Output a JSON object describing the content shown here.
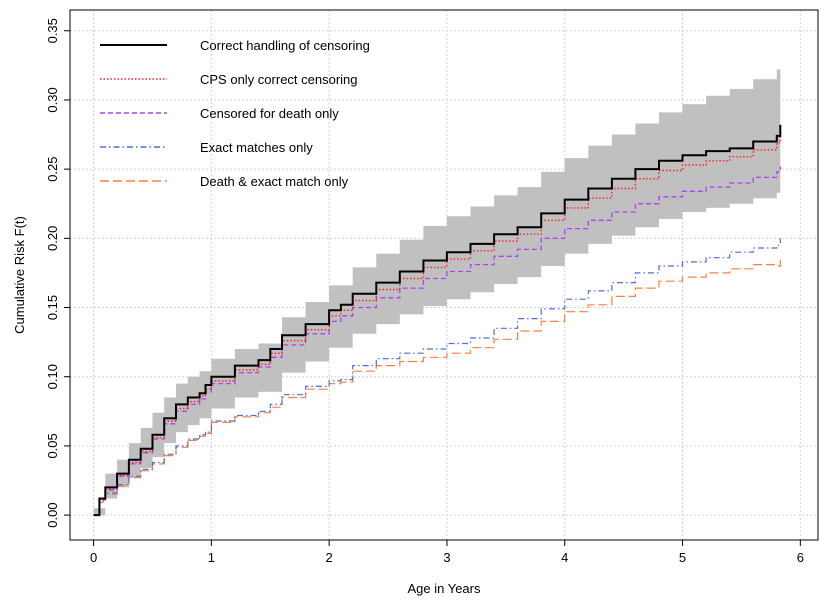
{
  "chart_data": {
    "type": "line",
    "title": "",
    "xlabel": "Age in Years",
    "ylabel": "Cumulative Risk F(t)",
    "xlim": [
      -0.2,
      6.15
    ],
    "ylim": [
      -0.018,
      0.365
    ],
    "x_ticks": [
      "0",
      "1",
      "2",
      "3",
      "4",
      "5",
      "6"
    ],
    "y_ticks": [
      "0.00",
      "0.05",
      "0.10",
      "0.15",
      "0.20",
      "0.25",
      "0.30",
      "0.35"
    ],
    "grid": true,
    "legend_position": "top-left",
    "series": [
      {
        "name": "Correct handling of censoring",
        "color": "#000000",
        "style": "solid",
        "x": [
          0,
          0.05,
          0.1,
          0.2,
          0.3,
          0.4,
          0.5,
          0.6,
          0.7,
          0.8,
          0.9,
          0.95,
          1.0,
          1.2,
          1.4,
          1.5,
          1.6,
          1.8,
          2.0,
          2.1,
          2.2,
          2.4,
          2.6,
          2.8,
          3.0,
          3.2,
          3.4,
          3.6,
          3.8,
          4.0,
          4.2,
          4.4,
          4.6,
          4.8,
          5.0,
          5.2,
          5.4,
          5.6,
          5.8,
          5.83
        ],
        "y": [
          0,
          0.012,
          0.02,
          0.03,
          0.04,
          0.048,
          0.058,
          0.07,
          0.08,
          0.085,
          0.088,
          0.094,
          0.1,
          0.108,
          0.112,
          0.12,
          0.13,
          0.138,
          0.148,
          0.152,
          0.16,
          0.168,
          0.176,
          0.184,
          0.19,
          0.196,
          0.203,
          0.208,
          0.218,
          0.228,
          0.236,
          0.243,
          0.25,
          0.256,
          0.26,
          0.263,
          0.265,
          0.27,
          0.274,
          0.282
        ]
      },
      {
        "name": "CPS only correct censoring",
        "color": "#ff2020",
        "style": "dotted",
        "x": [
          0,
          0.05,
          0.1,
          0.2,
          0.3,
          0.4,
          0.5,
          0.6,
          0.7,
          0.8,
          0.9,
          0.95,
          1.0,
          1.2,
          1.4,
          1.5,
          1.6,
          1.8,
          2.0,
          2.1,
          2.2,
          2.4,
          2.6,
          2.8,
          3.0,
          3.2,
          3.4,
          3.6,
          3.8,
          4.0,
          4.2,
          4.4,
          4.6,
          4.8,
          5.0,
          5.2,
          5.4,
          5.6,
          5.8,
          5.83
        ],
        "y": [
          0,
          0.011,
          0.019,
          0.029,
          0.038,
          0.046,
          0.056,
          0.068,
          0.077,
          0.082,
          0.086,
          0.091,
          0.097,
          0.105,
          0.109,
          0.117,
          0.126,
          0.134,
          0.144,
          0.148,
          0.155,
          0.163,
          0.171,
          0.179,
          0.185,
          0.191,
          0.198,
          0.203,
          0.213,
          0.222,
          0.229,
          0.236,
          0.243,
          0.249,
          0.253,
          0.256,
          0.259,
          0.264,
          0.269,
          0.276
        ]
      },
      {
        "name": "Censored for death only",
        "color": "#b040f0",
        "style": "dashed",
        "x": [
          0,
          0.05,
          0.1,
          0.2,
          0.3,
          0.4,
          0.5,
          0.6,
          0.7,
          0.8,
          0.9,
          0.95,
          1.0,
          1.2,
          1.4,
          1.5,
          1.6,
          1.8,
          2.0,
          2.1,
          2.2,
          2.4,
          2.6,
          2.8,
          3.0,
          3.2,
          3.4,
          3.6,
          3.8,
          4.0,
          4.2,
          4.4,
          4.6,
          4.8,
          5.0,
          5.2,
          5.4,
          5.6,
          5.8,
          5.83
        ],
        "y": [
          0,
          0.011,
          0.018,
          0.028,
          0.037,
          0.045,
          0.055,
          0.066,
          0.075,
          0.08,
          0.084,
          0.089,
          0.095,
          0.103,
          0.107,
          0.114,
          0.123,
          0.131,
          0.14,
          0.144,
          0.15,
          0.157,
          0.164,
          0.171,
          0.176,
          0.181,
          0.187,
          0.192,
          0.2,
          0.207,
          0.213,
          0.219,
          0.225,
          0.23,
          0.234,
          0.237,
          0.24,
          0.244,
          0.248,
          0.252
        ]
      },
      {
        "name": "Exact matches only",
        "color": "#4a6fe0",
        "style": "dashdot",
        "x": [
          0,
          0.05,
          0.1,
          0.2,
          0.3,
          0.4,
          0.5,
          0.6,
          0.7,
          0.8,
          0.9,
          0.95,
          1.0,
          1.2,
          1.4,
          1.5,
          1.6,
          1.8,
          2.0,
          2.1,
          2.2,
          2.4,
          2.6,
          2.8,
          3.0,
          3.2,
          3.4,
          3.6,
          3.8,
          4.0,
          4.2,
          4.4,
          4.6,
          4.8,
          5.0,
          5.2,
          5.4,
          5.6,
          5.8,
          5.83
        ],
        "y": [
          0,
          0.01,
          0.016,
          0.022,
          0.028,
          0.033,
          0.038,
          0.044,
          0.05,
          0.055,
          0.058,
          0.06,
          0.068,
          0.072,
          0.075,
          0.08,
          0.087,
          0.093,
          0.097,
          0.098,
          0.108,
          0.113,
          0.117,
          0.12,
          0.124,
          0.128,
          0.135,
          0.142,
          0.149,
          0.156,
          0.162,
          0.168,
          0.175,
          0.18,
          0.183,
          0.186,
          0.19,
          0.193,
          0.195,
          0.2
        ]
      },
      {
        "name": "Death & exact match only",
        "color": "#ff7f40",
        "style": "longdash",
        "x": [
          0,
          0.05,
          0.1,
          0.2,
          0.3,
          0.4,
          0.5,
          0.6,
          0.7,
          0.8,
          0.9,
          0.95,
          1.0,
          1.2,
          1.4,
          1.5,
          1.6,
          1.8,
          2.0,
          2.1,
          2.2,
          2.4,
          2.6,
          2.8,
          3.0,
          3.2,
          3.4,
          3.6,
          3.8,
          4.0,
          4.2,
          4.4,
          4.6,
          4.8,
          5.0,
          5.2,
          5.4,
          5.6,
          5.8,
          5.83
        ],
        "y": [
          0,
          0.009,
          0.015,
          0.021,
          0.027,
          0.032,
          0.037,
          0.043,
          0.049,
          0.054,
          0.057,
          0.059,
          0.067,
          0.071,
          0.074,
          0.078,
          0.085,
          0.091,
          0.095,
          0.096,
          0.104,
          0.108,
          0.111,
          0.114,
          0.117,
          0.121,
          0.127,
          0.133,
          0.14,
          0.147,
          0.152,
          0.158,
          0.164,
          0.169,
          0.172,
          0.175,
          0.178,
          0.181,
          0.18,
          0.185
        ]
      }
    ],
    "confidence_band": {
      "series": "Correct handling of censoring",
      "color": "#c0c0c0",
      "x": [
        0,
        0.1,
        0.2,
        0.3,
        0.4,
        0.5,
        0.6,
        0.7,
        0.8,
        0.9,
        1.0,
        1.2,
        1.4,
        1.6,
        1.8,
        2.0,
        2.2,
        2.4,
        2.6,
        2.8,
        3.0,
        3.2,
        3.4,
        3.6,
        3.8,
        4.0,
        4.2,
        4.4,
        4.6,
        4.8,
        5.0,
        5.2,
        5.4,
        5.6,
        5.8,
        5.83
      ],
      "lower": [
        0,
        0.012,
        0.02,
        0.027,
        0.034,
        0.042,
        0.052,
        0.06,
        0.065,
        0.07,
        0.077,
        0.085,
        0.089,
        0.103,
        0.111,
        0.121,
        0.131,
        0.138,
        0.145,
        0.151,
        0.156,
        0.161,
        0.167,
        0.172,
        0.18,
        0.189,
        0.196,
        0.202,
        0.208,
        0.214,
        0.219,
        0.222,
        0.225,
        0.229,
        0.233,
        0.237
      ],
      "upper": [
        0.005,
        0.03,
        0.04,
        0.052,
        0.063,
        0.074,
        0.085,
        0.095,
        0.1,
        0.104,
        0.113,
        0.12,
        0.124,
        0.143,
        0.154,
        0.166,
        0.179,
        0.189,
        0.199,
        0.209,
        0.216,
        0.223,
        0.231,
        0.237,
        0.248,
        0.258,
        0.267,
        0.275,
        0.283,
        0.291,
        0.297,
        0.303,
        0.308,
        0.315,
        0.322,
        0.33
      ]
    }
  }
}
